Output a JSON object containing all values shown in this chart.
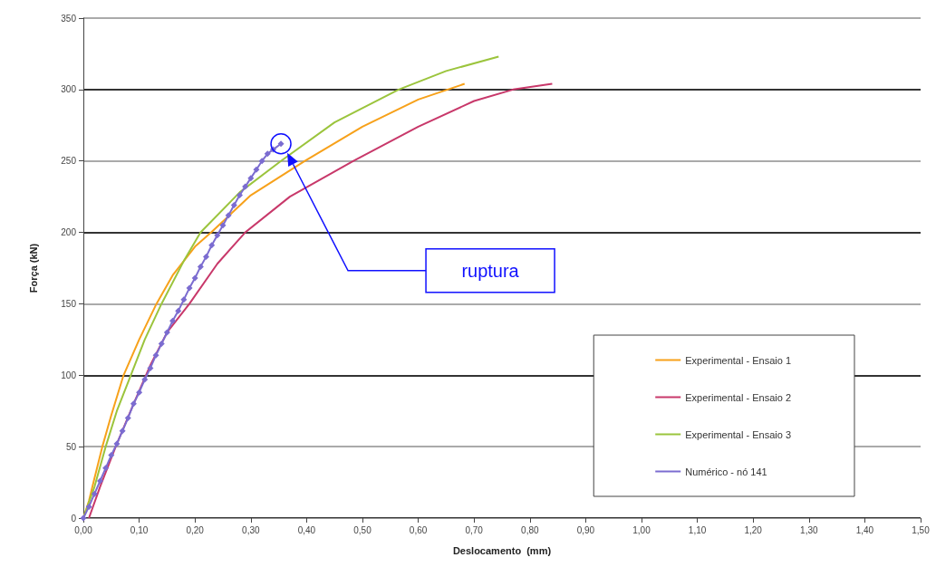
{
  "chart_data": {
    "type": "line",
    "xlabel": "Deslocamento  (mm)",
    "ylabel": "Força (kN)",
    "xlim": [
      0,
      1.5
    ],
    "xticks": [
      {
        "value": 0,
        "label": "0,00"
      },
      {
        "value": 0.1,
        "label": "0,10"
      },
      {
        "value": 0.2,
        "label": "0,20"
      },
      {
        "value": 0.3,
        "label": "0,30"
      },
      {
        "value": 0.4,
        "label": "0,40"
      },
      {
        "value": 0.5,
        "label": "0,50"
      },
      {
        "value": 0.6,
        "label": "0,60"
      },
      {
        "value": 0.7,
        "label": "0,70"
      },
      {
        "value": 0.8,
        "label": "0,80"
      },
      {
        "value": 0.9,
        "label": "0,90"
      },
      {
        "value": 1.0,
        "label": "1,00"
      },
      {
        "value": 1.1,
        "label": "1,10"
      },
      {
        "value": 1.2,
        "label": "1,20"
      },
      {
        "value": 1.3,
        "label": "1,30"
      },
      {
        "value": 1.4,
        "label": "1,40"
      },
      {
        "value": 1.5,
        "label": "1,50"
      }
    ],
    "ylim": [
      0,
      350
    ],
    "yticks": [
      0,
      50,
      100,
      150,
      200,
      250,
      300,
      350
    ],
    "grid": "y",
    "legend": "bottom right",
    "annotations": [
      "ruptura"
    ],
    "series": [
      {
        "name": "Experimental - Ensaio 1",
        "color": "#f7a11a",
        "marker": "none",
        "x": [
          0,
          0.01,
          0.02,
          0.034,
          0.05,
          0.072,
          0.1,
          0.131,
          0.16,
          0.2,
          0.229,
          0.3,
          0.397,
          0.5,
          0.6,
          0.683
        ],
        "values": [
          0,
          12,
          28,
          50,
          72,
          100,
          125,
          150,
          170,
          190,
          200,
          226,
          250,
          274,
          293,
          304
        ]
      },
      {
        "name": "Experimental - Ensaio 2",
        "color": "#c8386a",
        "marker": "none",
        "x": [
          0.01,
          0.03,
          0.058,
          0.09,
          0.12,
          0.15,
          0.19,
          0.24,
          0.29,
          0.37,
          0.484,
          0.6,
          0.7,
          0.77,
          0.84
        ],
        "values": [
          0,
          22,
          50,
          80,
          107,
          130,
          150,
          178,
          200,
          225,
          250,
          274,
          292,
          300,
          304
        ]
      },
      {
        "name": "Experimental - Ensaio 3",
        "color": "#9bc43c",
        "marker": "none",
        "x": [
          0,
          0.02,
          0.04,
          0.06,
          0.085,
          0.11,
          0.14,
          0.18,
          0.21,
          0.28,
          0.354,
          0.45,
          0.565,
          0.65,
          0.744
        ],
        "values": [
          0,
          22,
          50,
          75,
          100,
          125,
          150,
          180,
          200,
          228,
          250,
          277,
          300,
          313,
          323
        ]
      },
      {
        "name": "Numérico - nó 141",
        "color": "#7b6cd0",
        "marker": "diamond",
        "x": [
          0,
          0.01,
          0.02,
          0.03,
          0.04,
          0.05,
          0.06,
          0.07,
          0.08,
          0.09,
          0.1,
          0.11,
          0.12,
          0.13,
          0.14,
          0.15,
          0.16,
          0.17,
          0.18,
          0.19,
          0.2,
          0.21,
          0.22,
          0.23,
          0.24,
          0.25,
          0.26,
          0.27,
          0.28,
          0.29,
          0.3,
          0.31,
          0.32,
          0.33,
          0.34,
          0.354
        ],
        "values": [
          0,
          8,
          17,
          26,
          35,
          44,
          52,
          61,
          70,
          80,
          88,
          97,
          105,
          114,
          122,
          130,
          138,
          145,
          153,
          161,
          168,
          176,
          183,
          191,
          198,
          205,
          212,
          219,
          226,
          232,
          238,
          244,
          250,
          255,
          258,
          262
        ]
      }
    ]
  }
}
